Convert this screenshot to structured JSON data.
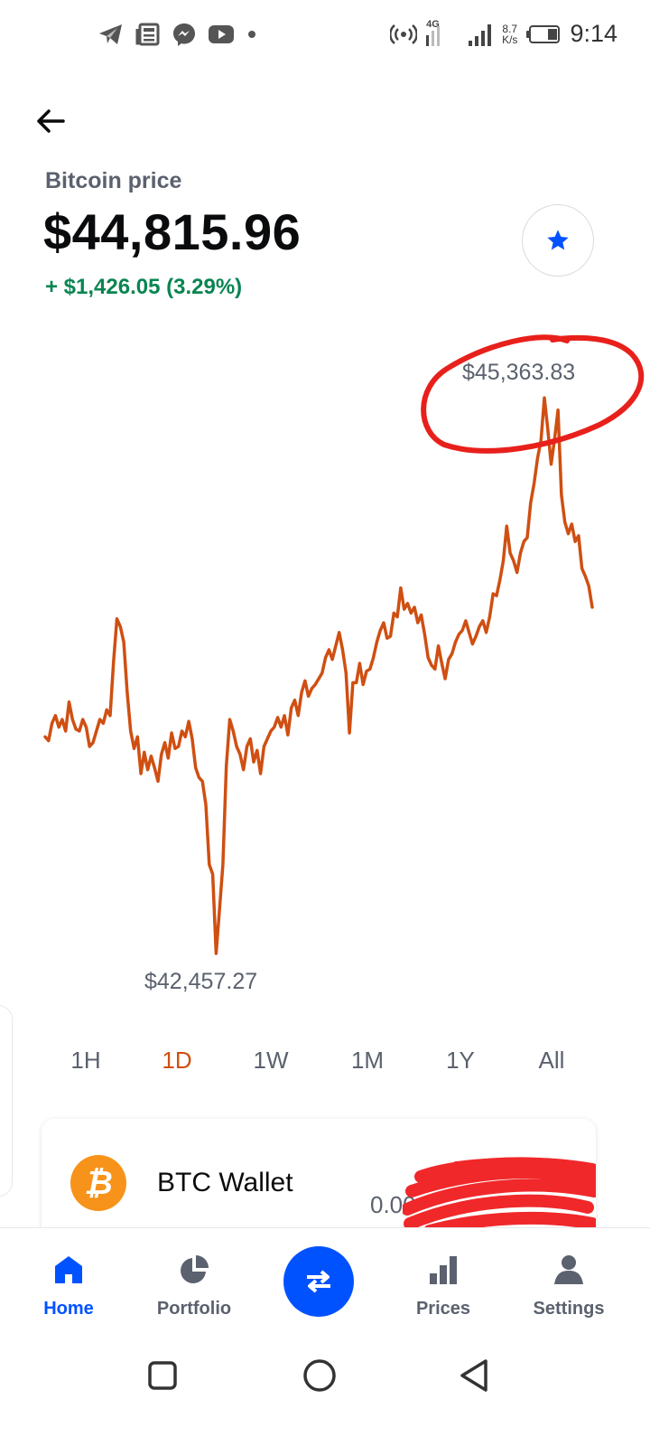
{
  "status_bar": {
    "time": "9:14",
    "net_type": "4G",
    "speed_value": "8.7",
    "speed_unit": "K/s",
    "left_icons": [
      "telegram-icon",
      "news-icon",
      "messenger-icon",
      "youtube-icon",
      "dot-icon"
    ],
    "right_icons": [
      "hotspot-icon",
      "signal-icon",
      "battery-icon"
    ]
  },
  "header": {
    "title": "Bitcoin price",
    "price": "$44,815.96",
    "change": "+ $1,426.05 (3.29%)"
  },
  "chart": {
    "high_label": "$45,363.83",
    "low_label": "$42,457.27"
  },
  "chart_data": {
    "type": "line",
    "y_max": 45363.83,
    "y_min": 42457.27,
    "ylim": [
      42457.27,
      45363.83
    ],
    "series": [
      {
        "values": [
          43610,
          43590,
          43680,
          43720,
          43660,
          43700,
          43640,
          43790,
          43700,
          43650,
          43640,
          43700,
          43660,
          43560,
          43580,
          43640,
          43700,
          43680,
          43750,
          43720,
          44000,
          44220,
          44180,
          44100,
          43840,
          43640,
          43550,
          43610,
          43420,
          43530,
          43440,
          43510,
          43450,
          43380,
          43520,
          43580,
          43500,
          43630,
          43550,
          43560,
          43640,
          43610,
          43690,
          43600,
          43450,
          43400,
          43380,
          43260,
          42950,
          42900,
          42490,
          42720,
          42950,
          43460,
          43700,
          43640,
          43560,
          43520,
          43440,
          43560,
          43600,
          43480,
          43540,
          43420,
          43560,
          43600,
          43640,
          43660,
          43710,
          43660,
          43720,
          43620,
          43760,
          43800,
          43720,
          43840,
          43900,
          43820,
          43860,
          43880,
          43910,
          43940,
          44020,
          44060,
          44010,
          44080,
          44150,
          44060,
          43940,
          43630,
          43890,
          43890,
          43990,
          43880,
          43950,
          43960,
          44020,
          44100,
          44160,
          44200,
          44120,
          44130,
          44250,
          44230,
          44380,
          44270,
          44300,
          44250,
          44280,
          44200,
          44240,
          44140,
          44020,
          43980,
          43960,
          44080,
          43990,
          43910,
          44010,
          44040,
          44100,
          44140,
          44160,
          44210,
          44150,
          44090,
          44130,
          44180,
          44210,
          44150,
          44230,
          44350,
          44340,
          44420,
          44520,
          44700,
          44560,
          44520,
          44460,
          44560,
          44620,
          44640,
          44820,
          44920,
          45050,
          45140,
          45363,
          45200,
          45020,
          45150,
          45300,
          44860,
          44720,
          44660,
          44710,
          44620,
          44650,
          44480,
          44440,
          44390,
          44280
        ]
      }
    ]
  },
  "ranges": {
    "items": [
      "1H",
      "1D",
      "1W",
      "1M",
      "1Y",
      "All"
    ],
    "active": "1D"
  },
  "wallet": {
    "name": "BTC Wallet",
    "balance": "0.00",
    "icon_symbol": "₿"
  },
  "nav": {
    "home": "Home",
    "portfolio": "Portfolio",
    "prices": "Prices",
    "settings": "Settings"
  },
  "colors": {
    "line": "#cf4f12",
    "positive": "#098551",
    "primary": "#0052ff",
    "annotation": "#e8201b",
    "btc": "#f7931a"
  }
}
